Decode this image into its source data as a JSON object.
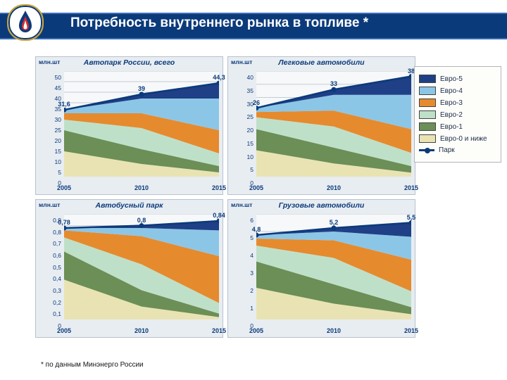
{
  "header": {
    "title": "Потребность внутреннего рынка в топливе *"
  },
  "footnote": "* по данным Минэнерго России",
  "colors": {
    "euro5": "#1f3f86",
    "euro4": "#8cc6e6",
    "euro3": "#e68a2e",
    "euro2": "#bfe0c8",
    "euro1": "#6b8f56",
    "euro0": "#e9e3b3",
    "park": "#0b3a7a",
    "grid": "#c6cbd2",
    "panel_bg": "#e8edf2",
    "plot_bg": "#f6f8fa"
  },
  "legend": [
    {
      "key": "euro5",
      "label": "Евро-5"
    },
    {
      "key": "euro4",
      "label": "Евро-4"
    },
    {
      "key": "euro3",
      "label": "Евро-3"
    },
    {
      "key": "euro2",
      "label": "Евро-2"
    },
    {
      "key": "euro1",
      "label": "Евро-1"
    },
    {
      "key": "euro0",
      "label": "Евро-0 и ниже"
    },
    {
      "key": "park",
      "label": "Парк",
      "line": true
    }
  ],
  "x": {
    "values": [
      2005,
      2010,
      2015
    ],
    "labels": [
      "2005",
      "2010",
      "2015"
    ]
  },
  "charts": [
    {
      "title": "Автопарк России, всего",
      "unit": "млн.шт",
      "ylim": [
        0,
        50
      ],
      "ytick_step": 5,
      "park": [
        31.6,
        39,
        44.3
      ],
      "park_labels": [
        "31,6",
        "39",
        "44,3"
      ],
      "stack": {
        "euro0": [
          12,
          6,
          2
        ],
        "euro1": [
          10,
          7,
          3
        ],
        "euro2": [
          5,
          10,
          6
        ],
        "euro3": [
          3,
          7,
          11
        ],
        "euro4": [
          1.6,
          7,
          15
        ],
        "euro5": [
          0,
          2,
          7.3
        ]
      }
    },
    {
      "title": "Легковые автомобили",
      "unit": "млн.шт",
      "ylim": [
        0,
        40
      ],
      "ytick_step": 5,
      "park": [
        26,
        33,
        38
      ],
      "park_labels": [
        "26",
        "33",
        "38"
      ],
      "stack": {
        "euro0": [
          10,
          5,
          1.5
        ],
        "euro1": [
          8,
          6,
          2.5
        ],
        "euro2": [
          4.5,
          8,
          5
        ],
        "euro3": [
          2,
          6,
          9
        ],
        "euro4": [
          1.5,
          6,
          13
        ],
        "euro5": [
          0,
          2,
          7
        ]
      }
    },
    {
      "title": "Автобусный парк",
      "unit": "млн.шт",
      "ylim": [
        0,
        0.9
      ],
      "ytick_step": 0.1,
      "park": [
        0.78,
        0.8,
        0.84
      ],
      "park_labels": [
        "0,78",
        "0,8",
        "0,84"
      ],
      "stack": {
        "euro0": [
          0.34,
          0.11,
          0.02
        ],
        "euro1": [
          0.24,
          0.14,
          0.03
        ],
        "euro2": [
          0.12,
          0.22,
          0.09
        ],
        "euro3": [
          0.06,
          0.24,
          0.4
        ],
        "euro4": [
          0.02,
          0.07,
          0.22
        ],
        "euro5": [
          0,
          0.02,
          0.08
        ]
      }
    },
    {
      "title": "Грузовые автомобили",
      "unit": "млн.шт",
      "ylim": [
        0,
        6
      ],
      "ytick_step": 1,
      "park": [
        4.8,
        5.2,
        5.5
      ],
      "park_labels": [
        "4,8",
        "5,2",
        "5,5"
      ],
      "stack": {
        "euro0": [
          1.8,
          0.9,
          0.3
        ],
        "euro1": [
          1.5,
          1.1,
          0.4
        ],
        "euro2": [
          0.9,
          1.5,
          0.9
        ],
        "euro3": [
          0.4,
          1.0,
          1.8
        ],
        "euro4": [
          0.2,
          0.5,
          1.3
        ],
        "euro5": [
          0,
          0.2,
          0.8
        ]
      }
    }
  ],
  "style": {
    "title_fontsize": 19,
    "chart_title_fontsize": 10.5,
    "tick_fontsize": 8.5,
    "legend_fontsize": 10
  }
}
